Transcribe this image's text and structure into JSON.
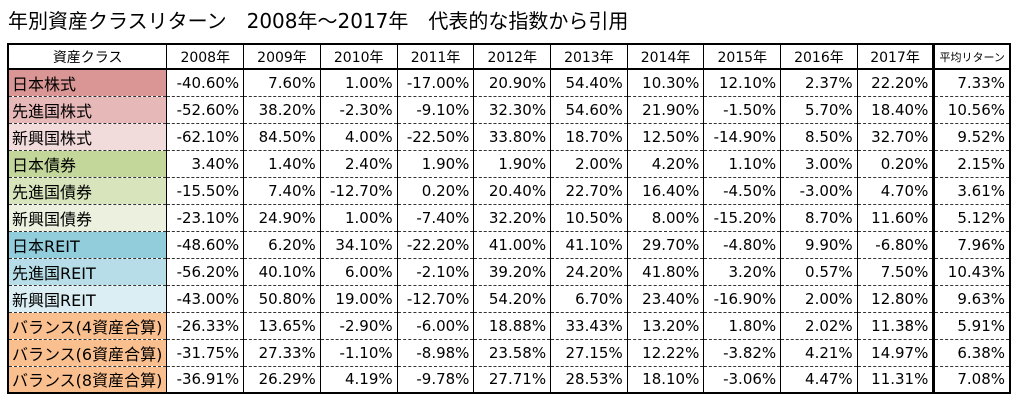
{
  "title": "年別資産クラスリターン　2008年～2017年　代表的な指数から引用",
  "table": {
    "headers": [
      "資産クラス",
      "2008年",
      "2009年",
      "2010年",
      "2011年",
      "2012年",
      "2013年",
      "2014年",
      "2015年",
      "2016年",
      "2017年",
      "平均リターン"
    ],
    "rows": [
      {
        "label": "日本株式",
        "color": "#da9694",
        "values": [
          "-40.60%",
          "7.60%",
          "1.00%",
          "-17.00%",
          "20.90%",
          "54.40%",
          "10.30%",
          "12.10%",
          "2.37%",
          "22.20%"
        ],
        "avg": "7.33%"
      },
      {
        "label": "先進国株式",
        "color": "#e6b8b7",
        "values": [
          "-52.60%",
          "38.20%",
          "-2.30%",
          "-9.10%",
          "32.30%",
          "54.60%",
          "21.90%",
          "-1.50%",
          "5.70%",
          "18.40%"
        ],
        "avg": "10.56%"
      },
      {
        "label": "新興国株式",
        "color": "#f2dcdb",
        "values": [
          "-62.10%",
          "84.50%",
          "4.00%",
          "-22.50%",
          "33.80%",
          "18.70%",
          "12.50%",
          "-14.90%",
          "8.50%",
          "32.70%"
        ],
        "avg": "9.52%"
      },
      {
        "label": "日本債券",
        "color": "#c4d79b",
        "values": [
          "3.40%",
          "1.40%",
          "2.40%",
          "1.90%",
          "1.90%",
          "2.00%",
          "4.20%",
          "1.10%",
          "3.00%",
          "0.20%"
        ],
        "avg": "2.15%"
      },
      {
        "label": "先進国債券",
        "color": "#d8e4bc",
        "values": [
          "-15.50%",
          "7.40%",
          "-12.70%",
          "0.20%",
          "20.40%",
          "22.70%",
          "16.40%",
          "-4.50%",
          "-3.00%",
          "4.70%"
        ],
        "avg": "3.61%"
      },
      {
        "label": "新興国債券",
        "color": "#ebf1de",
        "values": [
          "-23.10%",
          "24.90%",
          "1.00%",
          "-7.40%",
          "32.20%",
          "10.50%",
          "8.00%",
          "-15.20%",
          "8.70%",
          "11.60%"
        ],
        "avg": "5.12%"
      },
      {
        "label": "日本REIT",
        "color": "#92cddc",
        "values": [
          "-48.60%",
          "6.20%",
          "34.10%",
          "-22.20%",
          "41.00%",
          "41.10%",
          "29.70%",
          "-4.80%",
          "9.90%",
          "-6.80%"
        ],
        "avg": "7.96%"
      },
      {
        "label": "先進国REIT",
        "color": "#b7dee8",
        "values": [
          "-56.20%",
          "40.10%",
          "6.00%",
          "-2.10%",
          "39.20%",
          "24.20%",
          "41.80%",
          "3.20%",
          "0.57%",
          "7.50%"
        ],
        "avg": "10.43%"
      },
      {
        "label": "新興国REIT",
        "color": "#daeef3",
        "values": [
          "-43.00%",
          "50.80%",
          "19.00%",
          "-12.70%",
          "54.20%",
          "6.70%",
          "23.40%",
          "-16.90%",
          "2.00%",
          "12.80%"
        ],
        "avg": "9.63%"
      },
      {
        "label": "バランス(4資産合算)",
        "color": "#fabf8f",
        "values": [
          "-26.33%",
          "13.65%",
          "-2.90%",
          "-6.00%",
          "18.88%",
          "33.43%",
          "13.20%",
          "1.80%",
          "2.02%",
          "11.38%"
        ],
        "avg": "5.91%"
      },
      {
        "label": "バランス(6資産合算)",
        "color": "#fabf8f",
        "values": [
          "-31.75%",
          "27.33%",
          "-1.10%",
          "-8.98%",
          "23.58%",
          "27.15%",
          "12.22%",
          "-3.82%",
          "4.21%",
          "14.97%"
        ],
        "avg": "6.38%"
      },
      {
        "label": "バランス(8資産合算)",
        "color": "#fabf8f",
        "values": [
          "-36.91%",
          "26.29%",
          "4.19%",
          "-9.78%",
          "27.71%",
          "28.53%",
          "18.10%",
          "-3.06%",
          "4.47%",
          "11.31%"
        ],
        "avg": "7.08%"
      }
    ]
  }
}
